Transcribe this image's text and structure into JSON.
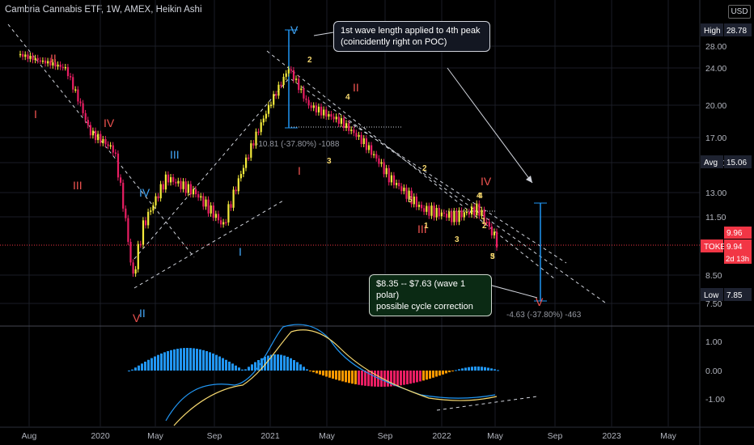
{
  "header": {
    "title": "Cambria Cannabis ETF, 1W, AMEX, Heikin Ashi",
    "currency": "USD"
  },
  "price_axis": {
    "ticks": [
      "28.00",
      "24.00",
      "20.00",
      "17.00",
      "15.00",
      "13.00",
      "11.50",
      "9.96",
      "8.50",
      "7.50"
    ],
    "tags": [
      {
        "label": "High",
        "value": "28.78",
        "bg": "#1e2230",
        "color": "#fff"
      },
      {
        "label": "Avg",
        "value": "15.06",
        "bg": "#1e2230",
        "color": "#fff"
      },
      {
        "label": "TOKE",
        "value": "9.94",
        "bg": "#f23645",
        "color": "#fff",
        "sub": "2d 13h"
      },
      {
        "label": "Low",
        "value": "7.85",
        "bg": "#1e2230",
        "color": "#fff"
      }
    ],
    "current_price": "9.96"
  },
  "indicator_axis": {
    "ticks": [
      "1.00",
      "0.00",
      "-1.00"
    ]
  },
  "time_axis": {
    "ticks": [
      "Aug",
      "2020",
      "May",
      "Sep",
      "2021",
      "May",
      "Sep",
      "2022",
      "May",
      "Sep",
      "2023",
      "May"
    ]
  },
  "annotations": {
    "callout_top": [
      "1st wave length  applied to 4th peak",
      "(coincidently right on POC)"
    ],
    "callout_bottom": [
      "$8.35 -- $7.63 (wave 1 polar)",
      "possible cycle correction"
    ],
    "measure_1": "-10.81 (-37.80%) -1088",
    "measure_2": "-4.63 (-37.80%) -463",
    "wave_labels": [
      "II",
      "I",
      "IV",
      "III",
      "V",
      "II",
      "III",
      "IV",
      "V",
      "II",
      "I",
      "III",
      "IV",
      "V",
      "I",
      "2",
      "3",
      "4",
      "1",
      "2",
      "3",
      "4",
      "5",
      "1",
      "2",
      "3",
      "4",
      "5"
    ]
  },
  "colors": {
    "bull": "#f5eb3b",
    "bear": "#e91e63",
    "macd_pos": "#2196f3",
    "macd_neg": "#ff9800",
    "roman": "#ef5350",
    "roman_blue": "#42a5f5"
  },
  "chart_data": {
    "type": "candlestick",
    "title": "Cambria Cannabis ETF, 1W, AMEX, Heikin Ashi",
    "ylim": [
      7.5,
      28.78
    ],
    "x_ticks": [
      "Aug",
      "2020",
      "May",
      "Sep",
      "2021",
      "May",
      "Sep",
      "2022",
      "May",
      "Sep",
      "2023",
      "May"
    ],
    "close_trend": [
      {
        "x": "2019-07",
        "y": 26.5
      },
      {
        "x": "2019-09",
        "y": 24.0
      },
      {
        "x": "2019-11",
        "y": 17.5
      },
      {
        "x": "2020-01",
        "y": 16.0
      },
      {
        "x": "2020-03",
        "y": 8.3
      },
      {
        "x": "2020-04",
        "y": 11.0
      },
      {
        "x": "2020-06",
        "y": 14.0
      },
      {
        "x": "2020-08",
        "y": 13.0
      },
      {
        "x": "2020-10",
        "y": 11.0
      },
      {
        "x": "2020-12",
        "y": 15.5
      },
      {
        "x": "2021-02",
        "y": 24.0
      },
      {
        "x": "2021-04",
        "y": 20.0
      },
      {
        "x": "2021-06",
        "y": 18.5
      },
      {
        "x": "2021-08",
        "y": 16.5
      },
      {
        "x": "2021-10",
        "y": 14.0
      },
      {
        "x": "2021-12",
        "y": 12.0
      },
      {
        "x": "2022-02",
        "y": 11.5
      },
      {
        "x": "2022-03",
        "y": 12.0
      },
      {
        "x": "2022-04",
        "y": 9.94
      }
    ],
    "levels": {
      "high": 28.78,
      "avg": 15.06,
      "low": 7.85,
      "last": 9.94
    },
    "indicator": {
      "name": "MACD",
      "ylim": [
        -1.5,
        1.5
      ]
    }
  }
}
